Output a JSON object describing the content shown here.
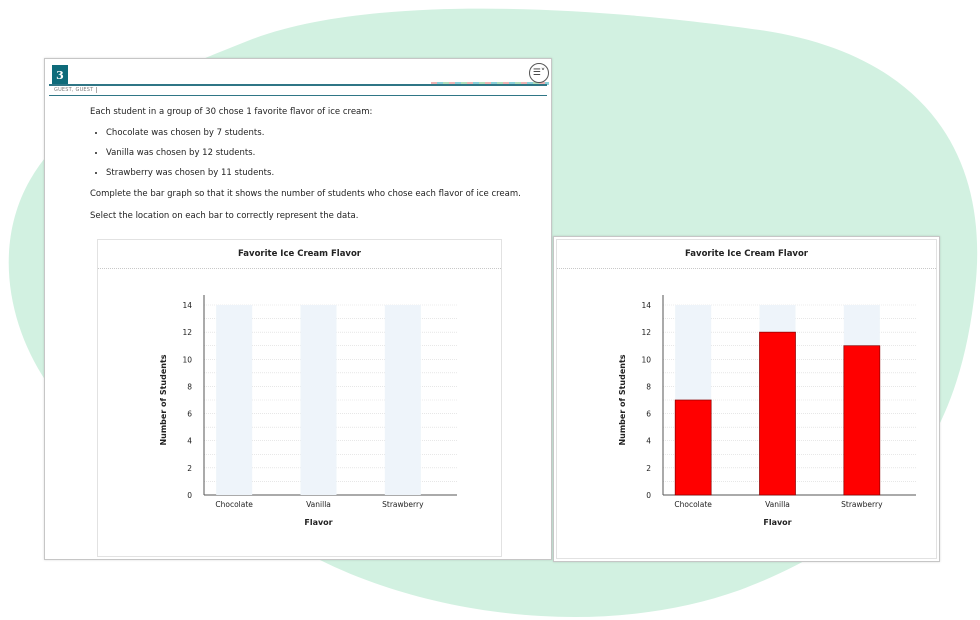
{
  "question": {
    "number": "3",
    "user_label": "GUEST, GUEST",
    "intro": "Each student in a group of 30 chose 1 favorite flavor of ice cream:",
    "bullets": [
      "Chocolate was chosen by 7 students.",
      "Vanilla was chosen by 12 students.",
      "Strawberry was chosen by 11 students."
    ],
    "instruction1": "Complete the bar graph so that it shows the number of students who chose each flavor of ice cream.",
    "instruction2": "Select the location on each bar to correctly represent the data."
  },
  "menu_icon": "menu-chevron-icon",
  "colors": {
    "accent": "#0e6b7a",
    "bar_fill": "#ff0000",
    "bar_track": "#eef4fa",
    "blob": "#d2f1e1"
  },
  "chart_data": [
    {
      "type": "bar",
      "title": "Favorite Ice Cream Flavor",
      "xlabel": "Flavor",
      "ylabel": "Number of Students",
      "categories": [
        "Chocolate",
        "Vanilla",
        "Strawberry"
      ],
      "values": [
        0,
        0,
        0
      ],
      "ylim": [
        0,
        14
      ],
      "yticks": [
        0,
        2,
        4,
        6,
        8,
        10,
        12,
        14
      ],
      "grid": true
    },
    {
      "type": "bar",
      "title": "Favorite Ice Cream Flavor",
      "xlabel": "Flavor",
      "ylabel": "Number of Students",
      "categories": [
        "Chocolate",
        "Vanilla",
        "Strawberry"
      ],
      "values": [
        7,
        12,
        11
      ],
      "ylim": [
        0,
        14
      ],
      "yticks": [
        0,
        2,
        4,
        6,
        8,
        10,
        12,
        14
      ],
      "grid": true
    }
  ]
}
